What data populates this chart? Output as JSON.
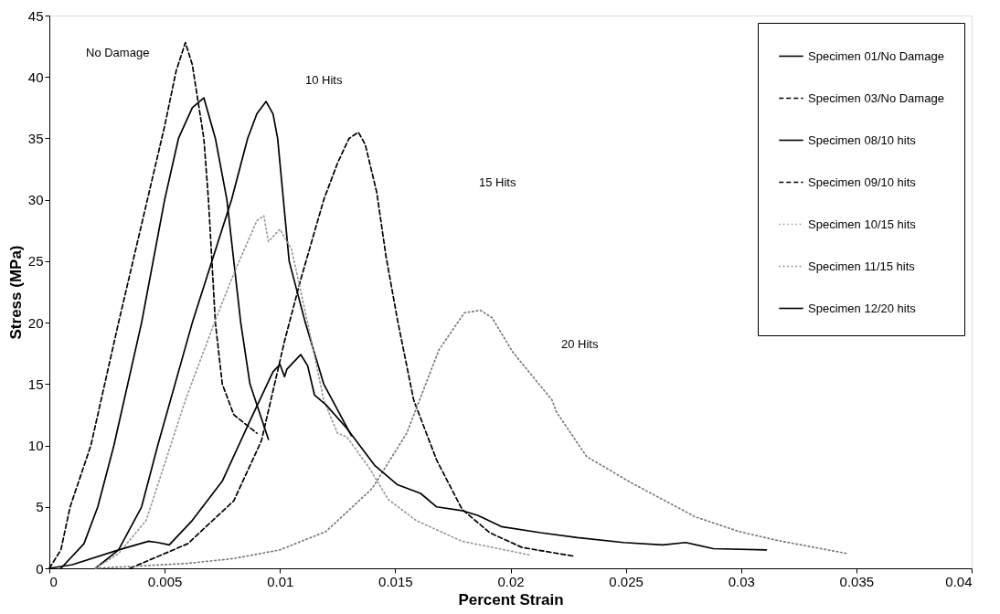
{
  "chart_data": {
    "type": "line",
    "xlabel": "Percent Strain",
    "ylabel": "Stress (MPa)",
    "xlim": [
      0,
      0.04
    ],
    "xticks": [
      0,
      0.005,
      0.01,
      0.015,
      0.02,
      0.025,
      0.03,
      0.035,
      0.04
    ],
    "ylim": [
      0,
      45
    ],
    "yticks": [
      0,
      5,
      10,
      15,
      20,
      25,
      30,
      35,
      40,
      45
    ],
    "grid": false,
    "legend": "top right",
    "annotations": [
      "No Damage",
      "10 Hits",
      "15 Hits",
      "20 Hits"
    ],
    "series": [
      {
        "name": "Specimen 01/No Damage",
        "color": "#000000",
        "line_style": "solid",
        "x": [
          0.0005,
          0.0015,
          0.0021,
          0.0028,
          0.004,
          0.005,
          0.0056,
          0.0062,
          0.0067,
          0.0072,
          0.0077,
          0.0083,
          0.0087,
          0.0095
        ],
        "values": [
          0,
          2,
          5,
          10,
          20,
          30,
          35,
          37.5,
          38.3,
          35,
          30,
          20,
          15,
          10.5
        ]
      },
      {
        "name": "Specimen 03/No Damage",
        "color": "#000000",
        "line_style": "dashed",
        "x": [
          0,
          0.0005,
          0.0009,
          0.0018,
          0.003,
          0.004,
          0.005,
          0.0055,
          0.0059,
          0.0062,
          0.0067,
          0.0069,
          0.0072,
          0.0075,
          0.008,
          0.009
        ],
        "values": [
          0,
          1.5,
          5,
          10,
          20,
          28,
          36,
          40.5,
          42.8,
          41,
          35,
          30,
          20,
          15,
          12.5,
          11
        ]
      },
      {
        "name": "Specimen 08/10 hits",
        "color": "#000000",
        "line_style": "solid",
        "x": [
          0.002,
          0.003,
          0.004,
          0.0047,
          0.0062,
          0.0079,
          0.0086,
          0.009,
          0.0094,
          0.0097,
          0.0099,
          0.0104,
          0.0111,
          0.0119,
          0.0131
        ],
        "values": [
          0,
          1.5,
          5,
          10,
          20,
          30,
          35,
          37,
          38,
          37,
          35,
          25,
          20,
          15,
          10.8
        ]
      },
      {
        "name": "Specimen 09/10 hits",
        "color": "#000000",
        "line_style": "dashed",
        "x": [
          0.0035,
          0.006,
          0.008,
          0.0092,
          0.0102,
          0.0109,
          0.0119,
          0.0125,
          0.013,
          0.0134,
          0.0137,
          0.0142,
          0.0146,
          0.0151,
          0.0158,
          0.0168,
          0.0179,
          0.0191,
          0.0205,
          0.0227
        ],
        "values": [
          0,
          2,
          5.5,
          10.4,
          18.5,
          23.5,
          30,
          33,
          35,
          35.5,
          34.5,
          30.6,
          25.4,
          20.2,
          13.7,
          8.8,
          4.8,
          2.9,
          1.7,
          1.0
        ]
      },
      {
        "name": "Specimen 10/15 hits",
        "color": "#9a9a9a",
        "line_style": "dotted",
        "x": [
          0.002,
          0.003,
          0.0042,
          0.0059,
          0.0072,
          0.008,
          0.009,
          0.0093,
          0.0095,
          0.01,
          0.0105,
          0.0112,
          0.0119,
          0.0125,
          0.0129,
          0.0139,
          0.0147,
          0.0159,
          0.0179,
          0.0208
        ],
        "values": [
          0,
          1.2,
          3.9,
          13.7,
          20.2,
          24,
          28.3,
          28.7,
          26.6,
          27.6,
          26,
          20,
          13.7,
          11,
          10.7,
          8.1,
          5.6,
          3.9,
          2.2,
          1.1
        ]
      },
      {
        "name": "Specimen 11/15 hits",
        "color": "#7a7a7a",
        "line_style": "dotted",
        "x": [
          0.002,
          0.006,
          0.008,
          0.01,
          0.012,
          0.014,
          0.0155,
          0.0169,
          0.018,
          0.0187,
          0.0192,
          0.0201,
          0.0218,
          0.022,
          0.0233,
          0.0252,
          0.028,
          0.0299,
          0.0315,
          0.0346
        ],
        "values": [
          0,
          0.4,
          0.8,
          1.5,
          3,
          6.5,
          11,
          17.8,
          20.8,
          21,
          20.4,
          17.6,
          13.7,
          12.7,
          9.1,
          7.0,
          4.2,
          3.0,
          2.3,
          1.2
        ]
      },
      {
        "name": "Specimen 12/20 hits",
        "color": "#000000",
        "line_style": "solid",
        "x": [
          0,
          0.001,
          0.003,
          0.0043,
          0.0047,
          0.0052,
          0.0062,
          0.0075,
          0.0087,
          0.0097,
          0.01,
          0.0102,
          0.0103,
          0.0109,
          0.0112,
          0.0115,
          0.012,
          0.0129,
          0.0141,
          0.0151,
          0.0161,
          0.0168,
          0.0179,
          0.0186,
          0.0196,
          0.0213,
          0.0229,
          0.0249,
          0.0266,
          0.0276,
          0.0288,
          0.0311
        ],
        "values": [
          0,
          0.3,
          1.5,
          2.2,
          2.1,
          1.9,
          3.9,
          7.1,
          12,
          16,
          16.6,
          15.6,
          16.2,
          17.4,
          16.5,
          14.1,
          13.3,
          11.4,
          8.4,
          6.8,
          6.1,
          5.0,
          4.7,
          4.3,
          3.4,
          2.9,
          2.5,
          2.1,
          1.9,
          2.1,
          1.6,
          1.5
        ]
      }
    ]
  }
}
